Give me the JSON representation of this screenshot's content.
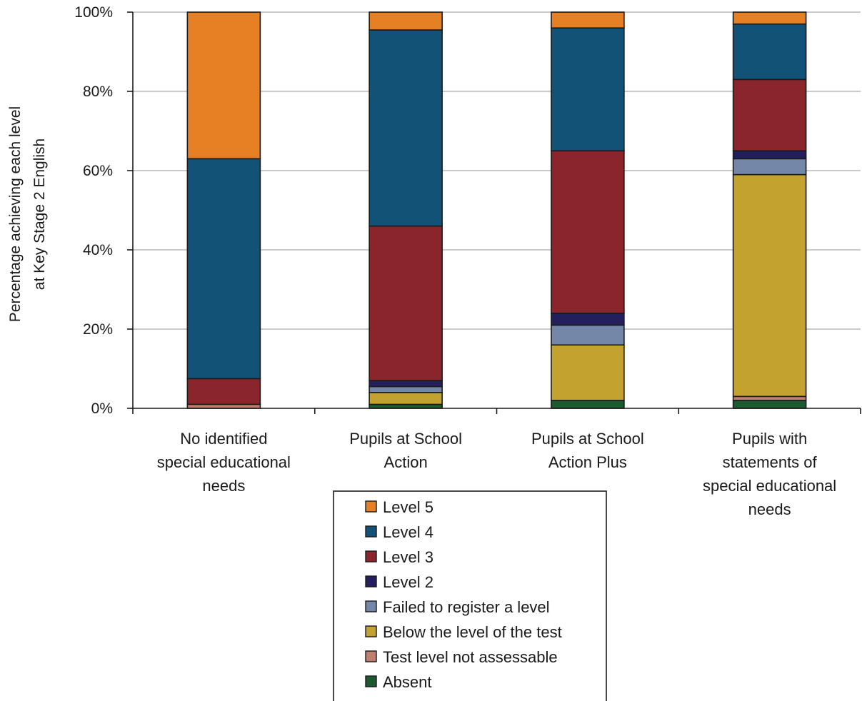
{
  "chart_data": {
    "type": "bar",
    "stacked": true,
    "percent_stacked": true,
    "title": "",
    "ylabel_lines": [
      "Percentage achieving each level",
      "at Key Stage 2 English"
    ],
    "ylim": [
      0,
      100
    ],
    "yticks": [
      0,
      20,
      40,
      60,
      80,
      100
    ],
    "ytick_labels": [
      "0%",
      "20%",
      "40%",
      "60%",
      "80%",
      "100%"
    ],
    "grid": true,
    "legend_position": "bottom-center",
    "categories": [
      [
        "No identified",
        "special educational",
        "needs"
      ],
      [
        "Pupils at School",
        "Action"
      ],
      [
        "Pupils at School",
        "Action Plus"
      ],
      [
        "Pupils with",
        "statements of",
        "special educational",
        "needs"
      ]
    ],
    "series": [
      {
        "name": "Absent",
        "color": "#1b5b2f",
        "values": [
          0,
          1,
          2,
          2
        ]
      },
      {
        "name": "Test level not assessable",
        "color": "#c27f6f",
        "values": [
          1,
          0,
          0,
          1
        ]
      },
      {
        "name": "Below the level of the test",
        "color": "#c4a22f",
        "values": [
          0,
          3,
          14,
          56
        ]
      },
      {
        "name": "Failed to register a level",
        "color": "#7487a8",
        "values": [
          0,
          1.5,
          5,
          4
        ]
      },
      {
        "name": "Level 2",
        "color": "#231e5c",
        "values": [
          0,
          1.5,
          3,
          2
        ]
      },
      {
        "name": "Level 3",
        "color": "#8a262b",
        "values": [
          6.5,
          39,
          41,
          18
        ]
      },
      {
        "name": "Level 4",
        "color": "#135277",
        "values": [
          55.5,
          49.5,
          31,
          14
        ]
      },
      {
        "name": "Level 5",
        "color": "#e68025",
        "values": [
          37,
          4.5,
          4,
          3
        ]
      }
    ],
    "legend_order": [
      "Level 5",
      "Level 4",
      "Level 3",
      "Level 2",
      "Failed to register a level",
      "Below the level of the test",
      "Test level not assessable",
      "Absent"
    ]
  }
}
